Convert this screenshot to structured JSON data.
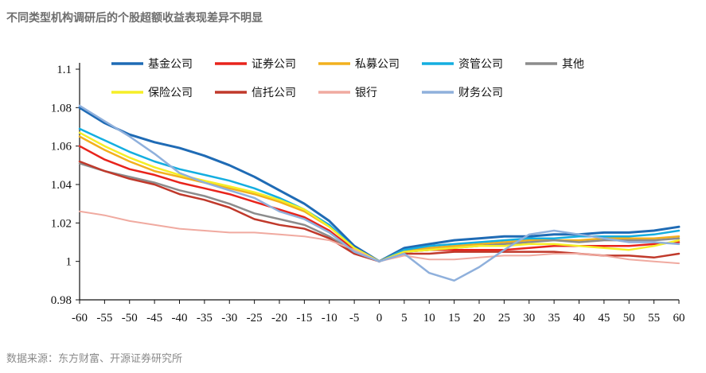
{
  "title": "不同类型机构调研后的个股超额收益表现差异不明显",
  "source": "数据来源：东方财富、开源证券研究所",
  "chart_data": {
    "type": "line",
    "title": "不同类型机构调研后的个股超额收益表现差异不明显",
    "xlabel": "",
    "ylabel": "",
    "xlim": [
      -60,
      60
    ],
    "ylim": [
      0.98,
      1.1
    ],
    "x_ticks": [
      -60,
      -55,
      -50,
      -45,
      -40,
      -35,
      -30,
      -25,
      -20,
      -15,
      -10,
      -5,
      0,
      5,
      10,
      15,
      20,
      25,
      30,
      35,
      40,
      45,
      50,
      55,
      60
    ],
    "x_tick_labels": [
      "-60",
      "-55",
      "-50",
      "-45",
      "-40",
      "-35",
      "-30",
      "-25",
      "-20",
      "-15",
      "-10",
      "-5",
      "0",
      "5",
      "10",
      "15",
      "20",
      "25",
      "30",
      "35",
      "40",
      "45",
      "50",
      "55",
      "60"
    ],
    "y_ticks": [
      0.98,
      1,
      1.02,
      1.04,
      1.06,
      1.08,
      1.1
    ],
    "y_tick_labels": [
      "0.98",
      "1",
      "1.02",
      "1.04",
      "1.06",
      "1.08",
      "1.1"
    ],
    "grid": false,
    "legend_position": "top",
    "x": [
      -60,
      -55,
      -50,
      -45,
      -40,
      -35,
      -30,
      -25,
      -20,
      -15,
      -10,
      -5,
      0,
      5,
      10,
      15,
      20,
      25,
      30,
      35,
      40,
      45,
      50,
      55,
      60
    ],
    "series": [
      {
        "name": "基金公司",
        "color": "#1f6bb5",
        "width": 3,
        "values": [
          1.08,
          1.072,
          1.066,
          1.062,
          1.059,
          1.055,
          1.05,
          1.044,
          1.037,
          1.03,
          1.021,
          1.008,
          1.0,
          1.007,
          1.009,
          1.011,
          1.012,
          1.013,
          1.013,
          1.014,
          1.014,
          1.015,
          1.015,
          1.016,
          1.018
        ]
      },
      {
        "name": "证券公司",
        "color": "#e8241c",
        "width": 2.5,
        "values": [
          1.06,
          1.053,
          1.048,
          1.045,
          1.041,
          1.038,
          1.035,
          1.031,
          1.027,
          1.023,
          1.016,
          1.006,
          1.0,
          1.005,
          1.006,
          1.006,
          1.006,
          1.006,
          1.007,
          1.008,
          1.008,
          1.008,
          1.008,
          1.009,
          1.01
        ]
      },
      {
        "name": "私募公司",
        "color": "#f2b01e",
        "width": 2.5,
        "values": [
          1.065,
          1.058,
          1.052,
          1.047,
          1.044,
          1.041,
          1.038,
          1.035,
          1.031,
          1.026,
          1.018,
          1.007,
          1.0,
          1.006,
          1.007,
          1.008,
          1.009,
          1.01,
          1.011,
          1.011,
          1.011,
          1.012,
          1.012,
          1.012,
          1.013
        ]
      },
      {
        "name": "资管公司",
        "color": "#14aee0",
        "width": 2.5,
        "values": [
          1.069,
          1.063,
          1.057,
          1.052,
          1.048,
          1.045,
          1.042,
          1.038,
          1.033,
          1.027,
          1.019,
          1.007,
          1.0,
          1.006,
          1.008,
          1.009,
          1.01,
          1.011,
          1.012,
          1.012,
          1.013,
          1.013,
          1.013,
          1.014,
          1.016
        ]
      },
      {
        "name": "其他",
        "color": "#8c8c8c",
        "width": 2.5,
        "values": [
          1.051,
          1.047,
          1.044,
          1.041,
          1.037,
          1.034,
          1.03,
          1.025,
          1.022,
          1.019,
          1.013,
          1.005,
          1.0,
          1.005,
          1.006,
          1.007,
          1.008,
          1.009,
          1.01,
          1.011,
          1.01,
          1.011,
          1.011,
          1.011,
          1.012
        ]
      },
      {
        "name": "保险公司",
        "color": "#f5ee27",
        "width": 2.5,
        "values": [
          1.067,
          1.06,
          1.054,
          1.049,
          1.045,
          1.042,
          1.039,
          1.036,
          1.032,
          1.027,
          1.018,
          1.007,
          1.0,
          1.005,
          1.006,
          1.007,
          1.008,
          1.008,
          1.009,
          1.009,
          1.008,
          1.007,
          1.006,
          1.008,
          1.011
        ]
      },
      {
        "name": "信托公司",
        "color": "#c0392b",
        "width": 2.5,
        "values": [
          1.052,
          1.047,
          1.043,
          1.04,
          1.035,
          1.032,
          1.028,
          1.022,
          1.019,
          1.017,
          1.012,
          1.004,
          1.0,
          1.004,
          1.004,
          1.005,
          1.005,
          1.005,
          1.005,
          1.005,
          1.004,
          1.003,
          1.003,
          1.002,
          1.004
        ]
      },
      {
        "name": "银行",
        "color": "#f0aaa0",
        "width": 2,
        "values": [
          1.026,
          1.024,
          1.021,
          1.019,
          1.017,
          1.016,
          1.015,
          1.015,
          1.014,
          1.013,
          1.011,
          1.006,
          1.0,
          1.003,
          1.001,
          1.001,
          1.002,
          1.003,
          1.003,
          1.004,
          1.004,
          1.003,
          1.001,
          1.0,
          0.999
        ]
      },
      {
        "name": "财务公司",
        "color": "#8fb0dc",
        "width": 2.5,
        "values": [
          1.081,
          1.073,
          1.065,
          1.056,
          1.046,
          1.041,
          1.037,
          1.033,
          1.026,
          1.022,
          1.015,
          1.005,
          1.0,
          1.004,
          0.994,
          0.99,
          0.997,
          1.006,
          1.014,
          1.016,
          1.014,
          1.012,
          1.01,
          1.01,
          1.009
        ]
      }
    ]
  }
}
